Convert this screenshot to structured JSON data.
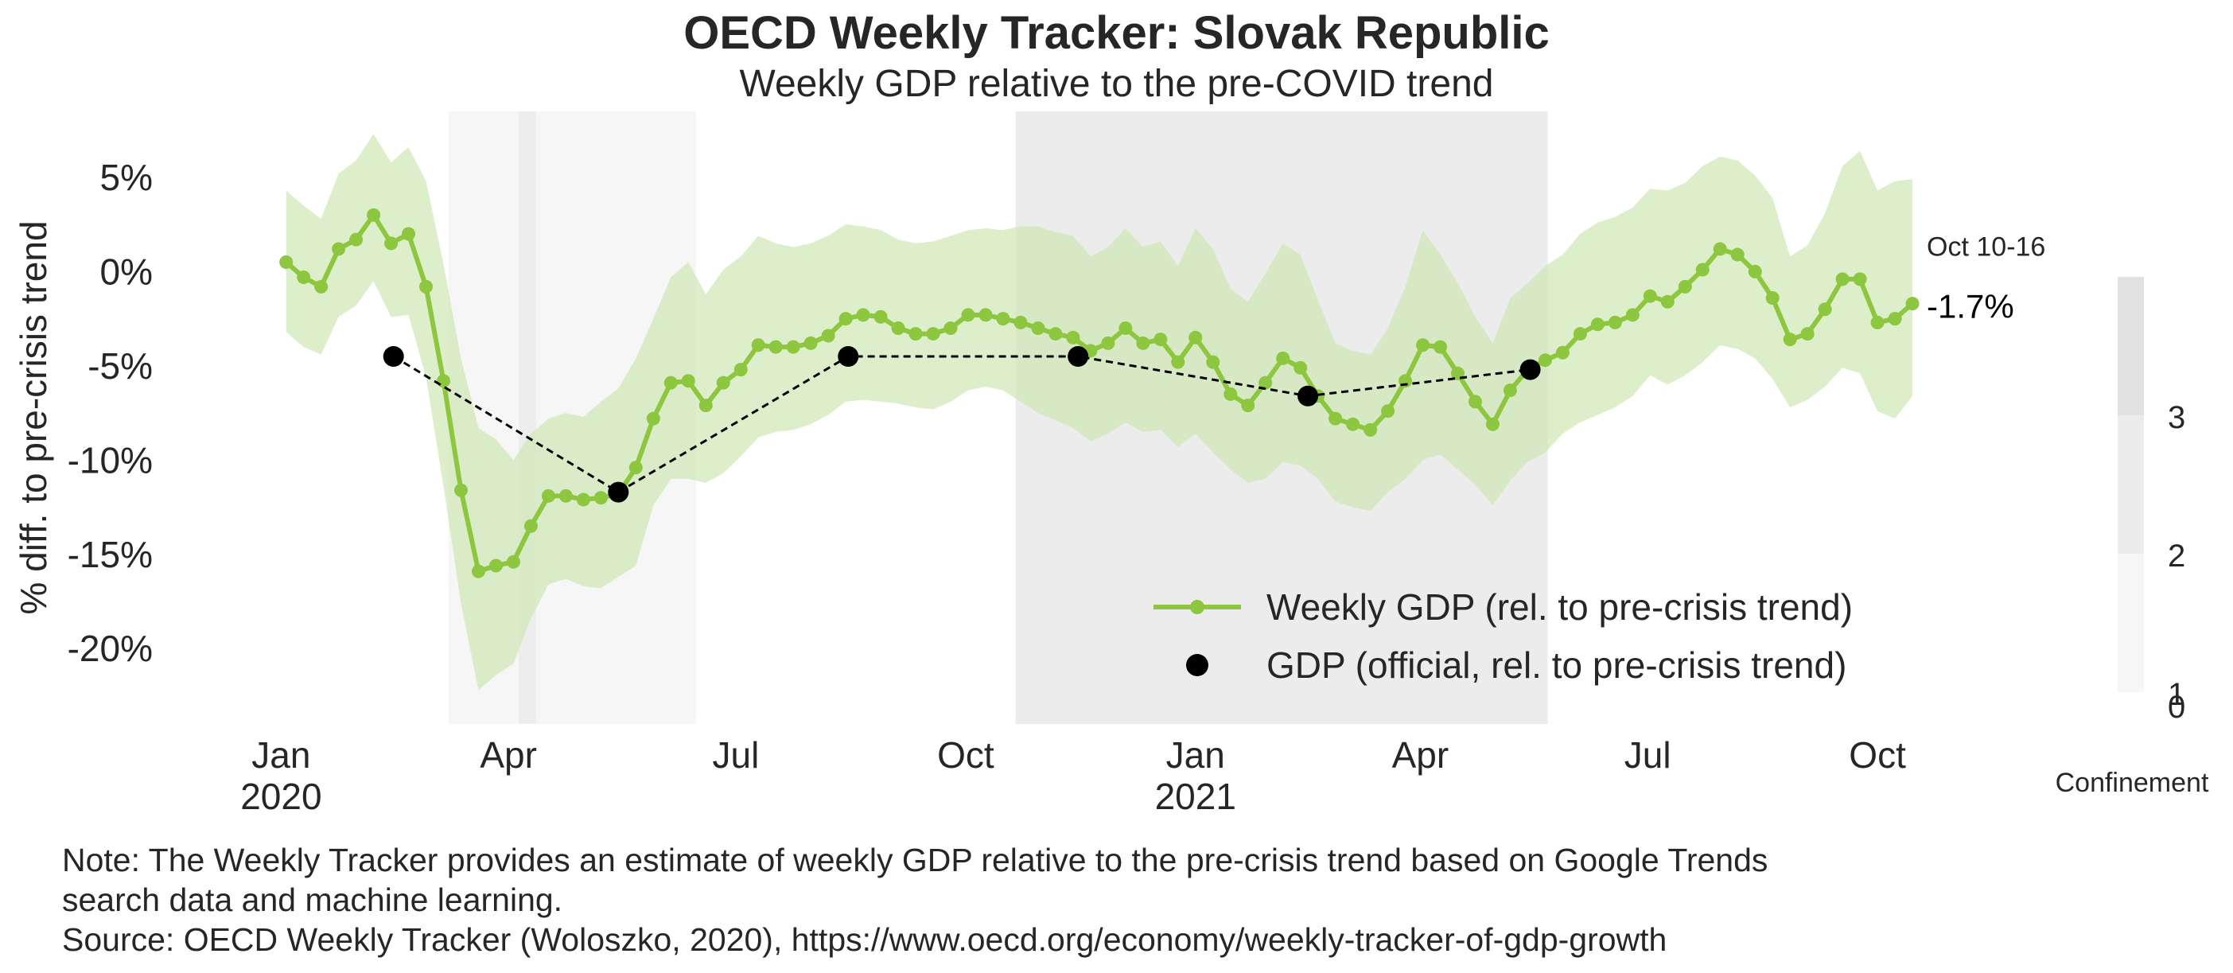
{
  "chart_data": {
    "type": "line",
    "title": "OECD Weekly Tracker: Slovak Republic",
    "subtitle": "Weekly GDP relative to the pre-COVID trend",
    "ylabel": "% diff. to pre-crisis trend",
    "ylim": [
      -24,
      8.5
    ],
    "xlim": [
      "2019-12-15",
      "2021-11-05"
    ],
    "y_ticks": [
      {
        "value": 5,
        "label": "5%"
      },
      {
        "value": 0,
        "label": "0%"
      },
      {
        "value": -5,
        "label": "-5%"
      },
      {
        "value": -10,
        "label": "-10%"
      },
      {
        "value": -15,
        "label": "-15%"
      },
      {
        "value": -20,
        "label": "-20%"
      }
    ],
    "x_ticks": [
      {
        "date": "2020-01-01",
        "label": "Jan",
        "year": "2020"
      },
      {
        "date": "2020-04-01",
        "label": "Apr"
      },
      {
        "date": "2020-07-01",
        "label": "Jul"
      },
      {
        "date": "2020-10-01",
        "label": "Oct"
      },
      {
        "date": "2021-01-01",
        "label": "Jan",
        "year": "2021"
      },
      {
        "date": "2021-04-01",
        "label": "Apr"
      },
      {
        "date": "2021-07-01",
        "label": "Jul"
      },
      {
        "date": "2021-10-01",
        "label": "Oct"
      }
    ],
    "grid": false,
    "legend_position": "bottom-right",
    "series": [
      {
        "name": "Weekly GDP (rel. to pre-crisis trend)",
        "color": "#8dc63f",
        "band_color": "#cfe8b3",
        "start_date": "2020-01-03",
        "step_days": 7,
        "values": [
          0.5,
          -0.3,
          -0.8,
          1.2,
          1.7,
          3.0,
          1.5,
          2.0,
          -0.8,
          -5.8,
          -11.6,
          -15.9,
          -15.6,
          -15.4,
          -13.5,
          -11.9,
          -11.9,
          -12.1,
          -12.0,
          -11.8,
          -10.4,
          -7.8,
          -5.9,
          -5.8,
          -7.1,
          -5.9,
          -5.2,
          -3.9,
          -4.0,
          -4.0,
          -3.8,
          -3.4,
          -2.5,
          -2.3,
          -2.4,
          -3.0,
          -3.3,
          -3.3,
          -3.0,
          -2.3,
          -2.3,
          -2.5,
          -2.7,
          -3.0,
          -3.3,
          -3.5,
          -4.2,
          -3.8,
          -3.0,
          -3.8,
          -3.6,
          -4.8,
          -3.5,
          -4.8,
          -6.5,
          -7.1,
          -5.9,
          -4.6,
          -5.1,
          -6.6,
          -7.8,
          -8.1,
          -8.4,
          -7.4,
          -5.8,
          -3.9,
          -4.0,
          -5.4,
          -6.9,
          -8.1,
          -6.3,
          -5.2,
          -4.7,
          -4.3,
          -3.3,
          -2.8,
          -2.7,
          -2.3,
          -1.3,
          -1.6,
          -0.8,
          0.1,
          1.2,
          0.9,
          0.0,
          -1.4,
          -3.6,
          -3.3,
          -2.0,
          -0.4,
          -0.4,
          -2.7,
          -2.5,
          -1.7
        ],
        "band_upper": [
          4.3,
          3.5,
          2.8,
          5.2,
          5.9,
          7.3,
          5.8,
          6.6,
          4.8,
          0.4,
          -4.6,
          -8.3,
          -8.9,
          -10.0,
          -8.6,
          -7.8,
          -7.5,
          -7.7,
          -6.9,
          -6.2,
          -4.6,
          -2.5,
          -0.3,
          0.5,
          -1.2,
          0.1,
          0.8,
          1.9,
          1.5,
          1.3,
          1.5,
          1.9,
          2.5,
          2.4,
          2.2,
          1.7,
          1.5,
          1.6,
          1.9,
          2.2,
          2.3,
          2.2,
          2.4,
          2.4,
          2.1,
          1.9,
          0.8,
          1.3,
          2.3,
          1.3,
          1.6,
          0.3,
          2.3,
          1.2,
          -0.9,
          -1.6,
          -0.1,
          1.5,
          0.9,
          -1.5,
          -3.8,
          -4.2,
          -4.4,
          -3.0,
          -0.8,
          2.2,
          0.9,
          -0.6,
          -2.4,
          -3.8,
          -1.4,
          -0.6,
          0.3,
          0.9,
          2.0,
          2.6,
          2.9,
          3.4,
          4.4,
          4.3,
          4.7,
          5.6,
          6.1,
          5.9,
          5.1,
          3.9,
          0.8,
          1.4,
          3.1,
          5.6,
          6.4,
          4.3,
          4.8,
          4.9
        ],
        "band_lower": [
          -3.2,
          -4.0,
          -4.4,
          -2.4,
          -1.8,
          -0.5,
          -2.4,
          -2.3,
          -5.6,
          -11.4,
          -17.6,
          -22.2,
          -21.4,
          -20.8,
          -18.4,
          -16.6,
          -16.3,
          -16.7,
          -16.8,
          -16.2,
          -15.6,
          -12.4,
          -11.0,
          -11.0,
          -11.2,
          -10.7,
          -9.8,
          -8.8,
          -8.5,
          -8.4,
          -8.1,
          -7.6,
          -6.9,
          -6.8,
          -6.9,
          -7.0,
          -7.2,
          -7.3,
          -6.9,
          -6.3,
          -6.1,
          -6.3,
          -6.9,
          -7.5,
          -7.9,
          -8.3,
          -9.0,
          -8.6,
          -8.0,
          -8.5,
          -8.4,
          -9.3,
          -8.6,
          -9.6,
          -10.5,
          -11.2,
          -11.0,
          -10.1,
          -10.3,
          -11.0,
          -12.2,
          -12.5,
          -12.7,
          -11.7,
          -11.0,
          -10.0,
          -9.7,
          -10.5,
          -11.3,
          -12.4,
          -11.1,
          -10.1,
          -9.6,
          -8.6,
          -8.0,
          -7.6,
          -7.2,
          -6.6,
          -5.5,
          -6.0,
          -5.5,
          -4.8,
          -3.9,
          -4.1,
          -4.6,
          -5.7,
          -7.2,
          -6.8,
          -6.1,
          -5.1,
          -5.4,
          -7.4,
          -7.8,
          -6.6
        ],
        "last_label": {
          "period": "Oct 10-16",
          "value": "-1.7%"
        }
      },
      {
        "name": "GDP (official, rel. to pre-crisis trend)",
        "color": "#000000",
        "dates": [
          "2020-02-15",
          "2020-05-15",
          "2020-08-15",
          "2020-11-15",
          "2021-02-15",
          "2021-05-15"
        ],
        "values": [
          -4.5,
          -11.7,
          -4.5,
          -4.5,
          -6.6,
          -5.2
        ]
      }
    ],
    "confinement": {
      "label": "Confinement",
      "scale_ticks": [
        "0",
        "1",
        "2",
        "3"
      ],
      "scale_colors": [
        "#ffffff",
        "#f6f6f6",
        "#ececec",
        "#e1e1e1"
      ],
      "periods": [
        {
          "start": "2020-03-08",
          "end": "2020-06-15",
          "level": 1
        },
        {
          "start": "2020-04-05",
          "end": "2020-04-12",
          "level": 2
        },
        {
          "start": "2020-10-21",
          "end": "2021-05-22",
          "level": 2
        }
      ]
    }
  },
  "notes": [
    "Note: The Weekly Tracker provides an estimate of weekly GDP relative to the pre-crisis trend based on Google Trends",
    "search data and machine learning.",
    "Source: OECD Weekly Tracker (Woloszko, 2020), https://www.oecd.org/economy/weekly-tracker-of-gdp-growth"
  ]
}
